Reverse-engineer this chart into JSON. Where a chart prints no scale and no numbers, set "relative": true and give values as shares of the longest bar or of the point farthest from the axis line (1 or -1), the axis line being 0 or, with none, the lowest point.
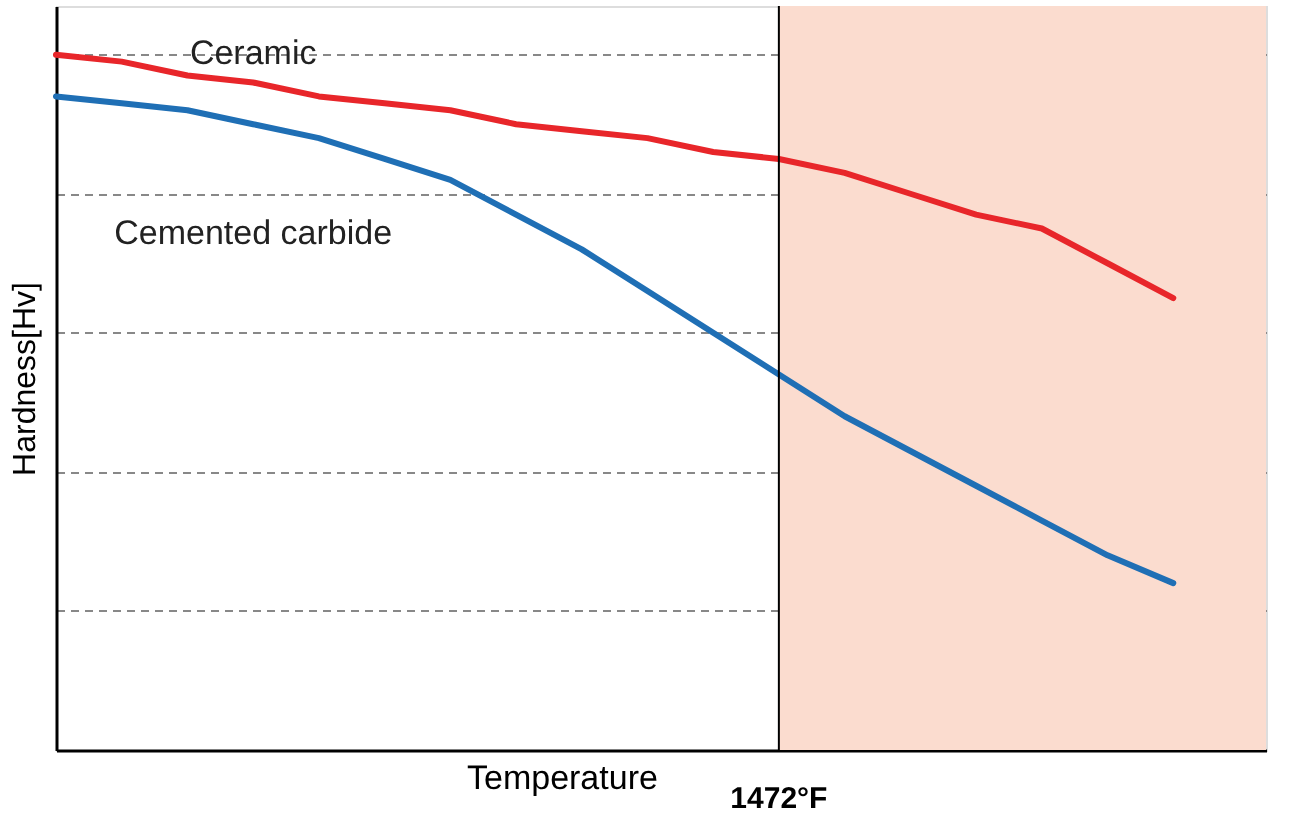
{
  "chart_data": {
    "type": "line",
    "relative": true,
    "xlabel": "Temperature",
    "ylabel": "Hardness[Hv]",
    "categories": [
      null,
      null,
      null,
      null,
      null,
      null,
      null,
      null,
      null,
      null,
      null,
      null,
      null,
      null,
      null,
      null,
      null,
      null
    ],
    "tick_labels": false,
    "grid": "y",
    "marker": "none",
    "line_style": "solid",
    "series": [
      {
        "name": "Ceramic",
        "color": "#e8262a",
        "values": [
          1.0,
          0.99,
          0.97,
          0.96,
          0.94,
          0.93,
          0.92,
          0.9,
          0.89,
          0.88,
          0.86,
          0.85,
          0.83,
          0.8,
          0.77,
          0.75,
          0.7,
          0.65
        ]
      },
      {
        "name": "Cemented carbide",
        "color": "#1f6fb5",
        "values": [
          0.94,
          0.93,
          0.92,
          0.9,
          0.88,
          0.85,
          0.82,
          0.77,
          0.72,
          0.66,
          0.6,
          0.54,
          0.48,
          0.43,
          0.38,
          0.33,
          0.28,
          0.24
        ]
      }
    ],
    "annotations": [
      "1472°F"
    ]
  }
}
